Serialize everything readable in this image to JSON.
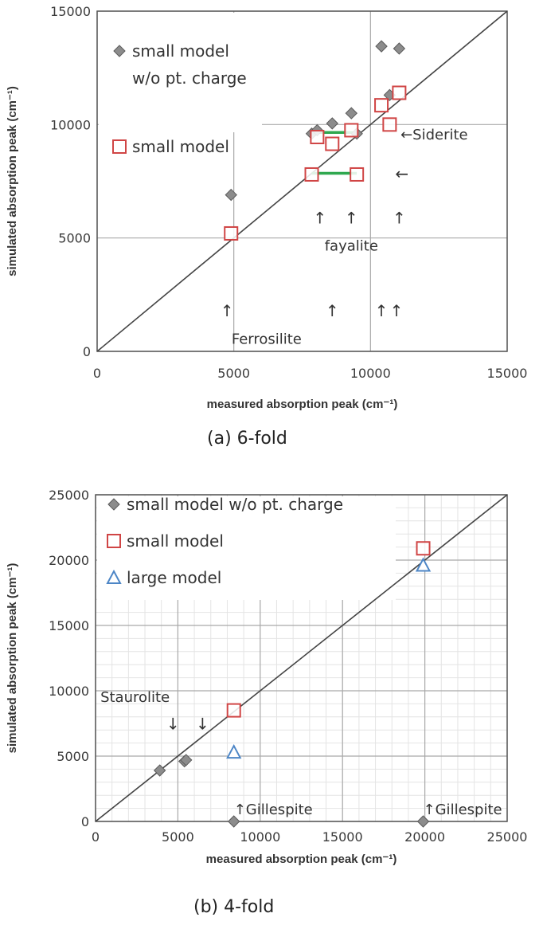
{
  "chart_data": [
    {
      "type": "scatter",
      "caption": "(a) 6-fold",
      "xlabel": "measured absorption peak (cm⁻¹)",
      "ylabel": "simulated absorption peak (cm⁻¹)",
      "xlim": [
        0,
        15000
      ],
      "ylim": [
        0,
        15000
      ],
      "xticks": [
        "0",
        "5000",
        "10000",
        "15000"
      ],
      "yticks": [
        "0",
        "5000",
        "10000",
        "15000"
      ],
      "grid": true,
      "legend_position": "top-left",
      "series": [
        {
          "name": "small model w/o pt. charge",
          "legend_lines": [
            "small model",
            "w/o pt. charge"
          ],
          "marker": "diamond",
          "color": "#8c8c8c",
          "x": [
            4900,
            7850,
            8050,
            8600,
            9300,
            9500,
            10400,
            10700,
            11050
          ],
          "y": [
            6900,
            9600,
            9750,
            10050,
            10500,
            9600,
            13450,
            11300,
            13350
          ]
        },
        {
          "name": "small model",
          "marker": "square",
          "color": "#d04545",
          "x": [
            4900,
            7850,
            8050,
            8600,
            9300,
            9500,
            10400,
            10700,
            11050
          ],
          "y": [
            5200,
            7800,
            9450,
            9150,
            9750,
            7800,
            10850,
            10000,
            11400
          ]
        }
      ],
      "connectors": [
        {
          "color": "#2fa84f",
          "x": [
            8050,
            9400
          ],
          "y": [
            9650,
            9650
          ]
        },
        {
          "color": "#2fa84f",
          "x": [
            7850,
            9500
          ],
          "y": [
            7850,
            7850
          ]
        }
      ],
      "annotations": [
        {
          "text": "←Siderite",
          "x": 11100,
          "y": 9550
        },
        {
          "text": "←",
          "x": 11150,
          "y": 7800
        },
        {
          "text": "↑",
          "x": 8150,
          "y": 5850
        },
        {
          "text": "↑",
          "x": 9300,
          "y": 5850
        },
        {
          "text": "↑",
          "x": 11050,
          "y": 5850
        },
        {
          "text": "fayalite",
          "x": 9300,
          "y": 4650
        },
        {
          "text": "↑",
          "x": 4750,
          "y": 1750
        },
        {
          "text": "↑",
          "x": 8600,
          "y": 1750
        },
        {
          "text": "↑",
          "x": 10400,
          "y": 1750
        },
        {
          "text": "↑",
          "x": 10950,
          "y": 1750
        },
        {
          "text": "Ferrosilite",
          "x": 6200,
          "y": 550
        }
      ]
    },
    {
      "type": "scatter",
      "caption": "(b) 4-fold",
      "xlabel": "measured absorption peak (cm⁻¹)",
      "ylabel": "simulated absorption peak (cm⁻¹)",
      "xlim": [
        0,
        25000
      ],
      "ylim": [
        0,
        25000
      ],
      "xticks": [
        "0",
        "5000",
        "10000",
        "15000",
        "20000",
        "25000"
      ],
      "yticks": [
        "0",
        "5000",
        "10000",
        "15000",
        "20000",
        "25000"
      ],
      "grid": true,
      "legend_position": "top-left",
      "series": [
        {
          "name": "small model w/o pt. charge",
          "marker": "diamond",
          "color": "#8c8c8c",
          "x": [
            3900,
            5400,
            5500,
            8400,
            19900
          ],
          "y": [
            3900,
            4600,
            4700,
            0,
            0
          ]
        },
        {
          "name": "small model",
          "marker": "square",
          "color": "#d04545",
          "x": [
            8400,
            19900
          ],
          "y": [
            8500,
            20900
          ]
        },
        {
          "name": "large model",
          "marker": "triangle",
          "color": "#4d86c6",
          "x": [
            8400,
            19900
          ],
          "y": [
            5300,
            19600
          ]
        }
      ],
      "annotations": [
        {
          "text": "Staurolite",
          "x": 2400,
          "y": 9500
        },
        {
          "text": "↓",
          "x": 4700,
          "y": 7400
        },
        {
          "text": "↓",
          "x": 6500,
          "y": 7400
        },
        {
          "text": "↑Gillespite",
          "x": 8400,
          "y": 900
        },
        {
          "text": "↑Gillespite",
          "x": 19900,
          "y": 900
        }
      ]
    }
  ]
}
